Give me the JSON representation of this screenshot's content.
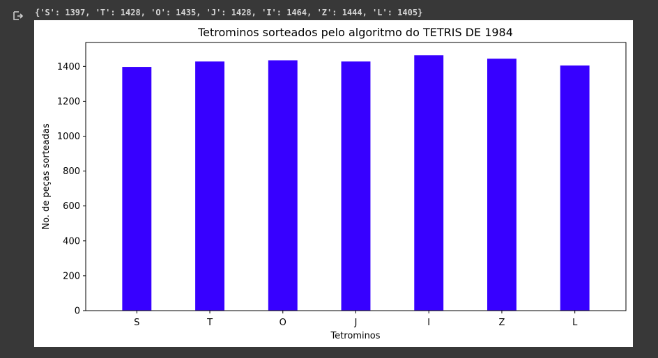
{
  "cell_output": {
    "icon": "output-arrow-icon",
    "stdout_text": "{'S': 1397, 'T': 1428, 'O': 1435, 'J': 1428, 'I': 1464, 'Z': 1444, 'L': 1405}"
  },
  "chart_data": {
    "type": "bar",
    "title": "Tetrominos sorteados pelo algoritmo do TETRIS DE 1984",
    "xlabel": "Tetrominos",
    "ylabel": "No. de peças sorteadas",
    "categories": [
      "S",
      "T",
      "O",
      "J",
      "I",
      "Z",
      "L"
    ],
    "values": [
      1397,
      1428,
      1435,
      1428,
      1464,
      1444,
      1405
    ],
    "ylim": [
      0,
      1537
    ],
    "yticks": [
      0,
      200,
      400,
      600,
      800,
      1000,
      1200,
      1400
    ],
    "bar_color": "#3700ff",
    "grid": false,
    "legend": "none"
  }
}
